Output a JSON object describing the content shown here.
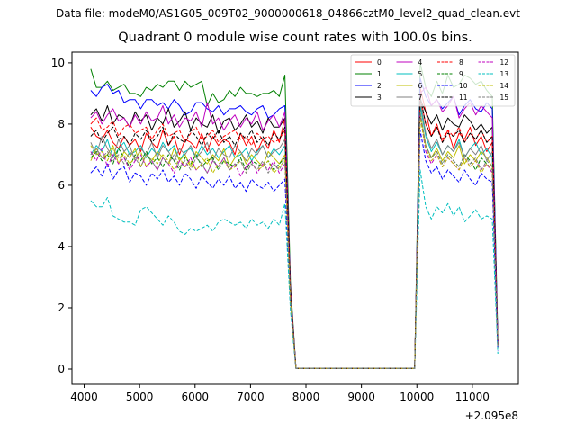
{
  "figure": {
    "suptitle": "Data file: modeM0/AS1G05_009T02_9000000618_04866cztM0_level2_quad_clean.evt"
  },
  "chart_data": {
    "type": "line",
    "title": "Quadrant 0 module wise count rates with 100.0s bins.",
    "xlabel": "",
    "ylabel": "",
    "x_offset_label": "+2.095e8",
    "xlim": [
      3780,
      11830
    ],
    "ylim": [
      -0.5,
      10.35
    ],
    "xticks": [
      4000,
      5000,
      6000,
      7000,
      8000,
      9000,
      10000,
      11000
    ],
    "xtick_labels": [
      "4000",
      "5000",
      "6000",
      "7000",
      "8000",
      "9000",
      "10000",
      "11000"
    ],
    "yticks": [
      0,
      2,
      4,
      6,
      8,
      10
    ],
    "ytick_labels": [
      "0",
      "2",
      "4",
      "6",
      "8",
      "10"
    ],
    "grid": false,
    "legend_position": "top-right",
    "legend_columns": 4,
    "x": [
      4120,
      4220,
      4320,
      4420,
      4520,
      4620,
      4720,
      4820,
      4920,
      5020,
      5120,
      5220,
      5320,
      5420,
      5520,
      5620,
      5720,
      5820,
      5920,
      6020,
      6120,
      6220,
      6320,
      6420,
      6520,
      6620,
      6720,
      6820,
      6920,
      7020,
      7120,
      7220,
      7320,
      7420,
      7520,
      7620,
      7720,
      7820,
      9960,
      10060,
      10160,
      10260,
      10360,
      10460,
      10560,
      10660,
      10760,
      10860,
      10960,
      11060,
      11160,
      11260,
      11360,
      11460
    ],
    "series": [
      {
        "name": "0",
        "color": "#ff0000",
        "dash": "solid",
        "values": [
          7.9,
          7.6,
          7.5,
          7.8,
          7.4,
          7.2,
          7.6,
          7.3,
          7.5,
          7.1,
          7.7,
          7.4,
          7.2,
          7.8,
          7.3,
          7.6,
          7.0,
          7.5,
          7.4,
          7.2,
          7.7,
          7.1,
          7.6,
          7.3,
          7.5,
          7.4,
          7.0,
          7.7,
          7.3,
          7.6,
          7.1,
          7.5,
          7.2,
          7.8,
          7.4,
          8.2,
          2.5,
          0.02,
          0.02,
          9.2,
          8.4,
          7.6,
          8.0,
          7.4,
          7.8,
          7.2,
          7.7,
          7.5,
          7.9,
          7.3,
          7.6,
          7.1,
          7.4,
          0.9
        ]
      },
      {
        "name": "1",
        "color": "#008000",
        "dash": "solid",
        "values": [
          9.8,
          9.2,
          9.2,
          9.4,
          9.1,
          9.2,
          9.3,
          9.0,
          9.0,
          8.9,
          9.2,
          9.1,
          9.3,
          9.2,
          9.4,
          9.4,
          9.1,
          9.4,
          9.2,
          9.3,
          9.4,
          8.6,
          9.0,
          8.7,
          8.8,
          9.1,
          8.9,
          9.2,
          9.0,
          9.0,
          8.9,
          9.0,
          9.0,
          9.1,
          8.9,
          9.6,
          2.8,
          0.02,
          0.02,
          10.0,
          9.2,
          8.9,
          9.4,
          9.0,
          9.6,
          9.2,
          9.3,
          9.6,
          9.5,
          9.3,
          9.4,
          9.1,
          8.9,
          1.0
        ]
      },
      {
        "name": "2",
        "color": "#0000ff",
        "dash": "solid",
        "values": [
          9.1,
          8.9,
          9.2,
          9.3,
          9.0,
          9.1,
          8.7,
          8.8,
          8.8,
          8.5,
          8.8,
          8.8,
          8.6,
          8.7,
          8.5,
          8.8,
          8.6,
          8.3,
          8.4,
          8.7,
          8.7,
          8.5,
          8.4,
          8.6,
          8.3,
          8.5,
          8.5,
          8.6,
          8.4,
          8.3,
          8.5,
          8.6,
          8.2,
          8.3,
          8.5,
          8.6,
          2.6,
          0.02,
          0.02,
          9.5,
          8.9,
          8.6,
          8.8,
          8.5,
          8.7,
          8.9,
          8.3,
          8.6,
          8.8,
          8.5,
          8.4,
          8.7,
          8.5,
          0.9
        ]
      },
      {
        "name": "3",
        "color": "#000000",
        "dash": "solid",
        "values": [
          8.3,
          8.5,
          8.1,
          8.6,
          8.0,
          8.3,
          8.2,
          7.9,
          8.4,
          8.1,
          8.3,
          7.8,
          8.2,
          8.0,
          8.5,
          7.9,
          8.1,
          8.4,
          7.8,
          8.2,
          8.0,
          7.9,
          8.3,
          7.7,
          8.1,
          8.2,
          7.8,
          8.0,
          8.3,
          7.9,
          8.1,
          7.7,
          8.2,
          7.9,
          7.9,
          8.2,
          2.6,
          0.02,
          0.02,
          8.8,
          8.4,
          8.0,
          8.3,
          7.8,
          8.2,
          8.0,
          7.9,
          8.3,
          8.1,
          7.8,
          8.0,
          7.7,
          7.9,
          0.8
        ]
      },
      {
        "name": "4",
        "color": "#bf00bf",
        "dash": "solid",
        "values": [
          8.2,
          8.4,
          8.0,
          8.3,
          8.5,
          8.1,
          8.2,
          7.9,
          8.3,
          8.0,
          8.4,
          8.1,
          8.2,
          8.6,
          8.0,
          8.3,
          7.9,
          8.2,
          8.1,
          8.4,
          7.9,
          8.7,
          8.0,
          8.2,
          7.8,
          8.1,
          8.3,
          7.9,
          8.2,
          8.0,
          8.4,
          7.8,
          8.1,
          8.3,
          7.9,
          8.4,
          2.6,
          0.02,
          0.02,
          9.0,
          9.2,
          8.6,
          8.8,
          8.4,
          8.6,
          8.9,
          8.2,
          8.5,
          8.7,
          8.3,
          8.6,
          8.4,
          8.2,
          0.8
        ]
      },
      {
        "name": "5",
        "color": "#00bfbf",
        "dash": "solid",
        "values": [
          7.0,
          7.3,
          7.1,
          7.5,
          6.9,
          7.2,
          7.4,
          7.0,
          7.1,
          7.3,
          6.9,
          7.2,
          7.0,
          7.4,
          7.1,
          7.3,
          6.8,
          7.1,
          7.2,
          6.9,
          7.3,
          7.0,
          7.2,
          6.9,
          7.1,
          7.3,
          6.9,
          7.0,
          7.2,
          6.8,
          7.1,
          7.3,
          6.9,
          7.2,
          7.0,
          7.3,
          2.3,
          0.02,
          0.02,
          8.6,
          7.6,
          7.1,
          7.4,
          7.0,
          7.3,
          7.1,
          7.5,
          6.9,
          7.2,
          7.4,
          7.0,
          7.2,
          6.9,
          0.7
        ]
      },
      {
        "name": "6",
        "color": "#bfbf00",
        "dash": "solid",
        "values": [
          6.8,
          7.2,
          6.9,
          7.0,
          7.3,
          6.7,
          7.1,
          6.9,
          7.2,
          6.6,
          7.0,
          6.8,
          7.1,
          6.9,
          6.7,
          7.2,
          6.8,
          7.0,
          6.6,
          7.1,
          6.9,
          6.7,
          7.0,
          6.8,
          7.2,
          6.6,
          6.9,
          7.1,
          6.7,
          7.0,
          6.8,
          6.6,
          7.1,
          6.9,
          6.7,
          7.0,
          2.2,
          0.02,
          0.02,
          8.4,
          7.3,
          6.9,
          7.2,
          6.8,
          7.1,
          6.9,
          7.3,
          6.7,
          7.0,
          6.8,
          7.1,
          6.9,
          6.6,
          0.7
        ]
      },
      {
        "name": "7",
        "color": "#808080",
        "dash": "solid",
        "values": [
          7.4,
          7.0,
          7.6,
          7.2,
          6.9,
          7.5,
          7.1,
          7.3,
          6.8,
          7.2,
          7.0,
          7.4,
          6.9,
          7.3,
          7.1,
          6.8,
          7.2,
          7.0,
          7.3,
          6.9,
          7.1,
          7.4,
          6.8,
          7.2,
          7.0,
          6.9,
          7.3,
          7.1,
          6.8,
          7.2,
          7.0,
          7.3,
          6.9,
          7.1,
          7.2,
          7.5,
          2.4,
          0.02,
          0.02,
          8.8,
          7.7,
          7.2,
          7.5,
          7.0,
          7.3,
          7.1,
          7.4,
          6.9,
          7.2,
          7.0,
          7.3,
          6.8,
          7.1,
          0.7
        ]
      },
      {
        "name": "8",
        "color": "#ff0000",
        "dash": "dashed",
        "values": [
          8.0,
          8.2,
          7.8,
          7.9,
          8.1,
          7.6,
          7.9,
          8.0,
          7.7,
          7.8,
          7.9,
          7.5,
          7.8,
          8.0,
          7.6,
          7.7,
          7.8,
          7.4,
          7.7,
          7.9,
          7.5,
          7.6,
          7.8,
          7.4,
          7.6,
          7.7,
          7.8,
          7.5,
          7.6,
          7.3,
          7.7,
          7.5,
          7.6,
          7.4,
          7.5,
          7.8,
          2.5,
          0.02,
          0.02,
          8.9,
          8.0,
          7.6,
          7.9,
          7.5,
          7.8,
          7.6,
          7.9,
          7.4,
          7.7,
          7.5,
          7.8,
          7.4,
          7.6,
          0.8
        ]
      },
      {
        "name": "9",
        "color": "#008000",
        "dash": "dashed",
        "values": [
          6.9,
          7.1,
          6.8,
          7.0,
          6.7,
          7.2,
          6.9,
          6.6,
          7.0,
          6.8,
          7.1,
          6.7,
          6.9,
          6.6,
          7.0,
          6.8,
          6.5,
          6.9,
          6.7,
          7.0,
          6.6,
          6.8,
          6.9,
          6.5,
          6.8,
          6.7,
          6.6,
          6.9,
          6.5,
          6.8,
          6.7,
          6.6,
          6.8,
          6.5,
          6.7,
          6.9,
          2.2,
          0.02,
          0.02,
          8.3,
          7.3,
          6.9,
          7.1,
          6.7,
          7.0,
          6.8,
          6.6,
          7.0,
          6.8,
          6.5,
          6.9,
          6.7,
          6.5,
          0.7
        ]
      },
      {
        "name": "10",
        "color": "#0000ff",
        "dash": "dashed",
        "values": [
          6.4,
          6.6,
          6.3,
          6.7,
          6.2,
          6.5,
          6.6,
          6.1,
          6.4,
          6.3,
          6.0,
          6.4,
          6.2,
          6.5,
          6.1,
          6.3,
          6.0,
          6.4,
          6.2,
          5.9,
          6.3,
          6.1,
          5.9,
          6.2,
          6.0,
          6.3,
          5.9,
          6.1,
          5.8,
          6.2,
          6.0,
          5.9,
          6.1,
          5.8,
          6.0,
          6.2,
          2.0,
          0.02,
          0.02,
          7.8,
          6.8,
          6.4,
          6.6,
          6.2,
          6.5,
          6.3,
          6.1,
          6.5,
          6.2,
          6.0,
          6.4,
          6.2,
          6.1,
          0.6
        ]
      },
      {
        "name": "11",
        "color": "#000000",
        "dash": "dashed",
        "values": [
          7.6,
          7.8,
          7.4,
          7.7,
          7.9,
          7.5,
          7.6,
          7.3,
          7.7,
          7.5,
          7.8,
          7.4,
          7.6,
          7.9,
          7.3,
          7.7,
          7.5,
          7.4,
          7.8,
          7.6,
          7.3,
          7.7,
          7.5,
          7.8,
          7.4,
          7.6,
          7.3,
          7.7,
          7.5,
          7.8,
          7.4,
          7.6,
          7.3,
          7.7,
          7.5,
          7.9,
          2.5,
          0.02,
          0.02,
          8.9,
          8.0,
          7.6,
          7.9,
          7.4,
          7.7,
          7.6,
          7.8,
          7.4,
          7.7,
          7.5,
          7.8,
          7.4,
          7.6,
          0.8
        ]
      },
      {
        "name": "12",
        "color": "#bf00bf",
        "dash": "dashed",
        "values": [
          7.1,
          6.8,
          7.2,
          6.6,
          7.0,
          6.7,
          6.9,
          6.5,
          6.8,
          7.0,
          6.6,
          6.8,
          6.5,
          6.9,
          6.7,
          6.4,
          6.8,
          6.6,
          6.9,
          6.5,
          6.7,
          6.4,
          6.8,
          6.6,
          6.9,
          6.5,
          6.7,
          6.3,
          6.6,
          6.8,
          6.4,
          6.7,
          6.5,
          6.8,
          6.4,
          6.7,
          2.2,
          0.02,
          0.02,
          8.3,
          7.1,
          6.7,
          7.0,
          6.6,
          6.9,
          6.7,
          6.5,
          6.9,
          6.6,
          6.8,
          6.5,
          6.7,
          6.4,
          0.7
        ]
      },
      {
        "name": "13",
        "color": "#00bfbf",
        "dash": "dashed",
        "values": [
          5.5,
          5.3,
          5.3,
          5.6,
          5.0,
          4.9,
          4.8,
          4.8,
          4.7,
          5.2,
          5.3,
          5.1,
          4.9,
          4.7,
          5.0,
          4.8,
          4.5,
          4.4,
          4.6,
          4.5,
          4.6,
          4.7,
          4.5,
          4.8,
          4.9,
          4.8,
          4.7,
          4.8,
          4.6,
          4.9,
          4.7,
          4.8,
          4.6,
          4.9,
          4.7,
          5.4,
          1.9,
          0.02,
          0.02,
          6.5,
          5.3,
          4.9,
          5.3,
          5.1,
          5.4,
          5.0,
          5.3,
          4.8,
          5.0,
          5.2,
          4.9,
          5.0,
          4.9,
          0.5
        ]
      },
      {
        "name": "14",
        "color": "#bfbf00",
        "dash": "dashed",
        "values": [
          7.3,
          7.0,
          7.1,
          6.8,
          7.2,
          6.9,
          7.0,
          6.7,
          6.9,
          7.1,
          6.6,
          6.9,
          6.7,
          7.0,
          6.8,
          6.5,
          6.9,
          6.6,
          6.8,
          6.5,
          6.7,
          6.9,
          6.4,
          6.7,
          6.8,
          6.5,
          6.6,
          6.8,
          6.4,
          6.7,
          6.5,
          6.6,
          6.8,
          6.4,
          6.6,
          6.8,
          2.2,
          0.02,
          0.02,
          8.2,
          7.2,
          6.8,
          7.0,
          6.6,
          6.9,
          6.7,
          6.5,
          6.9,
          6.6,
          6.8,
          6.4,
          6.7,
          6.5,
          0.7
        ]
      },
      {
        "name": "15",
        "color": "#808080",
        "dash": "dashed",
        "values": [
          7.0,
          7.2,
          6.9,
          7.1,
          6.8,
          7.0,
          6.7,
          7.1,
          6.9,
          6.6,
          7.0,
          6.8,
          6.5,
          6.9,
          6.7,
          7.0,
          6.6,
          6.8,
          6.5,
          6.9,
          6.7,
          6.4,
          6.8,
          6.6,
          6.9,
          6.5,
          6.7,
          6.8,
          6.4,
          6.7,
          6.5,
          6.8,
          6.4,
          6.7,
          6.5,
          6.9,
          2.3,
          0.02,
          0.02,
          8.4,
          7.3,
          6.9,
          7.1,
          6.7,
          7.0,
          6.8,
          6.6,
          7.0,
          6.7,
          6.9,
          6.5,
          6.8,
          6.6,
          0.7
        ]
      }
    ]
  }
}
